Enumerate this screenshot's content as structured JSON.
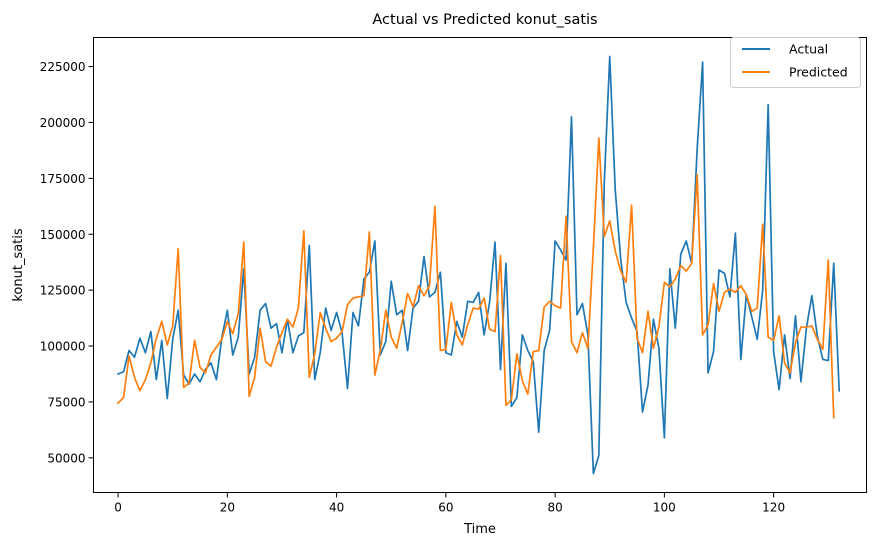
{
  "colors": {
    "actual": "#1f77b4",
    "predicted": "#ff7f0e",
    "axes": "#000000",
    "background": "#ffffff"
  },
  "chart_data": {
    "type": "line",
    "title": "Actual vs Predicted konut_satis",
    "xlabel": "Time",
    "ylabel": "konut_satis",
    "xlim": [
      -4.5,
      137
    ],
    "ylim": [
      34500,
      238000
    ],
    "x_ticks": [
      0,
      20,
      40,
      60,
      80,
      100,
      120
    ],
    "x_tick_labels": [
      "0",
      "20",
      "40",
      "60",
      "80",
      "100",
      "120"
    ],
    "y_ticks": [
      50000,
      75000,
      100000,
      125000,
      150000,
      175000,
      200000,
      225000
    ],
    "y_tick_labels": [
      "50000",
      "75000",
      "100000",
      "125000",
      "150000",
      "175000",
      "200000",
      "225000"
    ],
    "grid": false,
    "legend": "top-right",
    "x_start": 0,
    "series": [
      {
        "name": "Actual",
        "color": "#1f77b4",
        "values": [
          87500,
          88500,
          98000,
          95000,
          103500,
          97000,
          106500,
          85000,
          102500,
          76500,
          103000,
          116000,
          87000,
          83000,
          87500,
          84000,
          89500,
          92500,
          85000,
          104000,
          116000,
          96000,
          104000,
          134500,
          87500,
          95000,
          116000,
          119000,
          108000,
          110000,
          97000,
          112000,
          97000,
          104500,
          106000,
          145000,
          85000,
          97000,
          117000,
          107000,
          115000,
          106000,
          81000,
          115000,
          109000,
          130000,
          133000,
          147000,
          96000,
          102000,
          129000,
          114000,
          116000,
          98000,
          117000,
          120000,
          140000,
          122000,
          124000,
          133000,
          97000,
          96000,
          111000,
          104000,
          120000,
          119500,
          124000,
          105000,
          119500,
          146500,
          89500,
          137000,
          73000,
          77000,
          105000,
          98000,
          93000,
          61500,
          98000,
          107000,
          147000,
          143000,
          138500,
          202500,
          114000,
          119000,
          105000,
          43000,
          51000,
          173000,
          229500,
          170000,
          139000,
          119500,
          112500,
          106500,
          70500,
          82500,
          112000,
          99000,
          59000,
          134500,
          108000,
          141000,
          147000,
          137000,
          188000,
          227000,
          88000,
          97500,
          134000,
          132500,
          122000,
          150500,
          94000,
          123000,
          113000,
          103000,
          125000,
          208000,
          97500,
          80500,
          105000,
          85500,
          113500,
          84000,
          108000,
          122500,
          104500,
          94000,
          93500,
          137000,
          80000
        ]
      },
      {
        "name": "Predicted",
        "color": "#ff7f0e",
        "values": [
          74500,
          77000,
          95500,
          86000,
          80000,
          85000,
          92500,
          103500,
          111000,
          100500,
          109000,
          143500,
          81500,
          83500,
          102500,
          90500,
          88000,
          96000,
          99500,
          103000,
          111000,
          105500,
          114500,
          146500,
          77500,
          86000,
          108000,
          93000,
          91000,
          99500,
          106000,
          112000,
          108500,
          117000,
          151500,
          86000,
          96500,
          115000,
          108000,
          102000,
          103500,
          106500,
          118500,
          121500,
          122000,
          122500,
          151000,
          87000,
          98000,
          116000,
          104000,
          99000,
          110500,
          123500,
          117500,
          127000,
          122500,
          127000,
          162500,
          98000,
          98500,
          119500,
          105000,
          100500,
          109500,
          117000,
          116500,
          121500,
          107500,
          106500,
          140500,
          73500,
          76000,
          96500,
          84500,
          78500,
          97500,
          98000,
          117500,
          120000,
          118000,
          117000,
          158000,
          102000,
          97000,
          106000,
          99000,
          144000,
          193000,
          149000,
          156000,
          142500,
          133500,
          128500,
          163000,
          103500,
          97000,
          115500,
          99000,
          108500,
          128500,
          126500,
          130000,
          136000,
          133500,
          137000,
          176500,
          105000,
          109500,
          128000,
          115500,
          124000,
          125500,
          124000,
          127000,
          123000,
          115500,
          117000,
          154500,
          104000,
          102500,
          113500,
          92500,
          88000,
          101500,
          108500,
          108500,
          109000,
          103000,
          98500,
          138500,
          68000
        ]
      }
    ]
  }
}
